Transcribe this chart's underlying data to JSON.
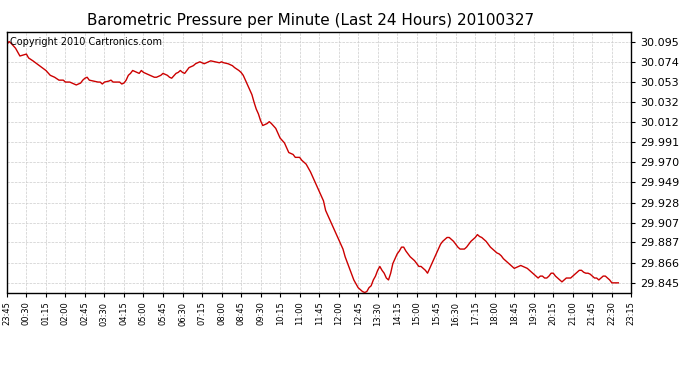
{
  "title": "Barometric Pressure per Minute (Last 24 Hours) 20100327",
  "copyright_text": "Copyright 2010 Cartronics.com",
  "line_color": "#cc0000",
  "background_color": "#ffffff",
  "grid_color": "#cccccc",
  "border_color": "#000000",
  "yticks": [
    29.845,
    29.866,
    29.887,
    29.907,
    29.928,
    29.949,
    29.97,
    29.991,
    30.012,
    30.032,
    30.053,
    30.074,
    30.095
  ],
  "ylim": [
    29.835,
    30.105
  ],
  "xtick_labels": [
    "23:45",
    "00:30",
    "01:15",
    "02:00",
    "02:45",
    "03:30",
    "04:15",
    "05:00",
    "05:45",
    "06:30",
    "07:15",
    "08:00",
    "08:45",
    "09:30",
    "10:15",
    "11:00",
    "11:45",
    "12:00",
    "12:45",
    "13:30",
    "14:15",
    "15:00",
    "15:45",
    "16:30",
    "17:15",
    "18:00",
    "18:45",
    "19:30",
    "20:15",
    "21:00",
    "21:45",
    "22:30",
    "23:15"
  ],
  "pressure_data": [
    [
      0,
      30.092
    ],
    [
      5,
      30.095
    ],
    [
      10,
      30.093
    ],
    [
      20,
      30.088
    ],
    [
      30,
      30.08
    ],
    [
      45,
      30.082
    ],
    [
      50,
      30.078
    ],
    [
      60,
      30.075
    ],
    [
      75,
      30.07
    ],
    [
      90,
      30.065
    ],
    [
      100,
      30.06
    ],
    [
      110,
      30.058
    ],
    [
      120,
      30.055
    ],
    [
      130,
      30.055
    ],
    [
      135,
      30.053
    ],
    [
      145,
      30.053
    ],
    [
      150,
      30.052
    ],
    [
      160,
      30.05
    ],
    [
      170,
      30.052
    ],
    [
      175,
      30.055
    ],
    [
      180,
      30.057
    ],
    [
      185,
      30.058
    ],
    [
      190,
      30.055
    ],
    [
      200,
      30.054
    ],
    [
      210,
      30.053
    ],
    [
      215,
      30.053
    ],
    [
      220,
      30.051
    ],
    [
      225,
      30.053
    ],
    [
      235,
      30.054
    ],
    [
      240,
      30.055
    ],
    [
      245,
      30.053
    ],
    [
      255,
      30.053
    ],
    [
      260,
      30.053
    ],
    [
      265,
      30.051
    ],
    [
      270,
      30.052
    ],
    [
      275,
      30.055
    ],
    [
      280,
      30.06
    ],
    [
      285,
      30.062
    ],
    [
      290,
      30.065
    ],
    [
      300,
      30.063
    ],
    [
      305,
      30.062
    ],
    [
      310,
      30.065
    ],
    [
      315,
      30.063
    ],
    [
      320,
      30.062
    ],
    [
      330,
      30.06
    ],
    [
      335,
      30.059
    ],
    [
      340,
      30.058
    ],
    [
      345,
      30.058
    ],
    [
      355,
      30.06
    ],
    [
      360,
      30.062
    ],
    [
      370,
      30.06
    ],
    [
      375,
      30.058
    ],
    [
      380,
      30.057
    ],
    [
      390,
      30.062
    ],
    [
      395,
      30.063
    ],
    [
      400,
      30.065
    ],
    [
      405,
      30.063
    ],
    [
      410,
      30.062
    ],
    [
      415,
      30.065
    ],
    [
      420,
      30.068
    ],
    [
      430,
      30.07
    ],
    [
      435,
      30.072
    ],
    [
      440,
      30.073
    ],
    [
      445,
      30.074
    ],
    [
      450,
      30.073
    ],
    [
      455,
      30.072
    ],
    [
      460,
      30.073
    ],
    [
      465,
      30.074
    ],
    [
      470,
      30.075
    ],
    [
      480,
      30.074
    ],
    [
      490,
      30.073
    ],
    [
      495,
      30.074
    ],
    [
      500,
      30.073
    ],
    [
      510,
      30.072
    ],
    [
      515,
      30.071
    ],
    [
      520,
      30.07
    ],
    [
      525,
      30.068
    ],
    [
      535,
      30.065
    ],
    [
      540,
      30.063
    ],
    [
      545,
      30.06
    ],
    [
      550,
      30.055
    ],
    [
      555,
      30.05
    ],
    [
      560,
      30.045
    ],
    [
      565,
      30.04
    ],
    [
      570,
      30.032
    ],
    [
      575,
      30.025
    ],
    [
      580,
      30.02
    ],
    [
      585,
      30.013
    ],
    [
      590,
      30.008
    ],
    [
      600,
      30.01
    ],
    [
      605,
      30.012
    ],
    [
      610,
      30.01
    ],
    [
      620,
      30.005
    ],
    [
      625,
      30.0
    ],
    [
      630,
      29.995
    ],
    [
      640,
      29.99
    ],
    [
      645,
      29.985
    ],
    [
      650,
      29.98
    ],
    [
      660,
      29.978
    ],
    [
      665,
      29.975
    ],
    [
      670,
      29.975
    ],
    [
      675,
      29.975
    ],
    [
      680,
      29.972
    ],
    [
      690,
      29.968
    ],
    [
      700,
      29.96
    ],
    [
      710,
      29.95
    ],
    [
      720,
      29.94
    ],
    [
      730,
      29.93
    ],
    [
      735,
      29.92
    ],
    [
      740,
      29.915
    ],
    [
      745,
      29.91
    ],
    [
      750,
      29.905
    ],
    [
      760,
      29.895
    ],
    [
      765,
      29.89
    ],
    [
      770,
      29.885
    ],
    [
      775,
      29.88
    ],
    [
      780,
      29.872
    ],
    [
      790,
      29.86
    ],
    [
      800,
      29.848
    ],
    [
      810,
      29.84
    ],
    [
      820,
      29.836
    ],
    [
      825,
      29.835
    ],
    [
      830,
      29.836
    ],
    [
      835,
      29.84
    ],
    [
      840,
      29.842
    ],
    [
      845,
      29.848
    ],
    [
      850,
      29.852
    ],
    [
      855,
      29.858
    ],
    [
      860,
      29.862
    ],
    [
      865,
      29.858
    ],
    [
      870,
      29.855
    ],
    [
      875,
      29.85
    ],
    [
      880,
      29.848
    ],
    [
      885,
      29.855
    ],
    [
      890,
      29.865
    ],
    [
      895,
      29.87
    ],
    [
      900,
      29.875
    ],
    [
      905,
      29.878
    ],
    [
      910,
      29.882
    ],
    [
      915,
      29.882
    ],
    [
      920,
      29.878
    ],
    [
      925,
      29.875
    ],
    [
      930,
      29.872
    ],
    [
      935,
      29.87
    ],
    [
      940,
      29.868
    ],
    [
      945,
      29.865
    ],
    [
      950,
      29.862
    ],
    [
      955,
      29.862
    ],
    [
      960,
      29.86
    ],
    [
      965,
      29.858
    ],
    [
      970,
      29.855
    ],
    [
      975,
      29.86
    ],
    [
      980,
      29.865
    ],
    [
      985,
      29.87
    ],
    [
      990,
      29.875
    ],
    [
      995,
      29.88
    ],
    [
      1000,
      29.885
    ],
    [
      1005,
      29.888
    ],
    [
      1010,
      29.89
    ],
    [
      1015,
      29.892
    ],
    [
      1020,
      29.892
    ],
    [
      1025,
      29.89
    ],
    [
      1030,
      29.888
    ],
    [
      1035,
      29.885
    ],
    [
      1040,
      29.882
    ],
    [
      1045,
      29.88
    ],
    [
      1050,
      29.88
    ],
    [
      1055,
      29.88
    ],
    [
      1060,
      29.882
    ],
    [
      1065,
      29.885
    ],
    [
      1070,
      29.888
    ],
    [
      1075,
      29.89
    ],
    [
      1080,
      29.892
    ],
    [
      1085,
      29.895
    ],
    [
      1090,
      29.893
    ],
    [
      1095,
      29.892
    ],
    [
      1100,
      29.89
    ],
    [
      1105,
      29.888
    ],
    [
      1110,
      29.885
    ],
    [
      1115,
      29.882
    ],
    [
      1120,
      29.88
    ],
    [
      1125,
      29.878
    ],
    [
      1130,
      29.876
    ],
    [
      1135,
      29.875
    ],
    [
      1140,
      29.873
    ],
    [
      1145,
      29.87
    ],
    [
      1150,
      29.868
    ],
    [
      1155,
      29.866
    ],
    [
      1160,
      29.864
    ],
    [
      1165,
      29.862
    ],
    [
      1170,
      29.86
    ],
    [
      1180,
      29.862
    ],
    [
      1185,
      29.863
    ],
    [
      1190,
      29.862
    ],
    [
      1200,
      29.86
    ],
    [
      1205,
      29.858
    ],
    [
      1210,
      29.856
    ],
    [
      1215,
      29.854
    ],
    [
      1220,
      29.852
    ],
    [
      1225,
      29.85
    ],
    [
      1230,
      29.852
    ],
    [
      1235,
      29.852
    ],
    [
      1240,
      29.85
    ],
    [
      1245,
      29.85
    ],
    [
      1250,
      29.852
    ],
    [
      1255,
      29.855
    ],
    [
      1260,
      29.855
    ],
    [
      1265,
      29.852
    ],
    [
      1270,
      29.85
    ],
    [
      1275,
      29.848
    ],
    [
      1280,
      29.846
    ],
    [
      1285,
      29.848
    ],
    [
      1290,
      29.85
    ],
    [
      1295,
      29.85
    ],
    [
      1300,
      29.85
    ],
    [
      1305,
      29.852
    ],
    [
      1310,
      29.854
    ],
    [
      1315,
      29.856
    ],
    [
      1320,
      29.858
    ],
    [
      1325,
      29.858
    ],
    [
      1330,
      29.856
    ],
    [
      1335,
      29.855
    ],
    [
      1340,
      29.855
    ],
    [
      1345,
      29.854
    ],
    [
      1350,
      29.852
    ],
    [
      1355,
      29.85
    ],
    [
      1360,
      29.85
    ],
    [
      1365,
      29.848
    ],
    [
      1370,
      29.85
    ],
    [
      1375,
      29.852
    ],
    [
      1380,
      29.852
    ],
    [
      1385,
      29.85
    ],
    [
      1390,
      29.848
    ],
    [
      1395,
      29.845
    ],
    [
      1400,
      29.845
    ],
    [
      1405,
      29.845
    ],
    [
      1410,
      29.845
    ]
  ],
  "title_fontsize": 11,
  "copyright_fontsize": 7,
  "ytick_fontsize": 8,
  "xtick_fontsize": 6,
  "linewidth": 1.0
}
